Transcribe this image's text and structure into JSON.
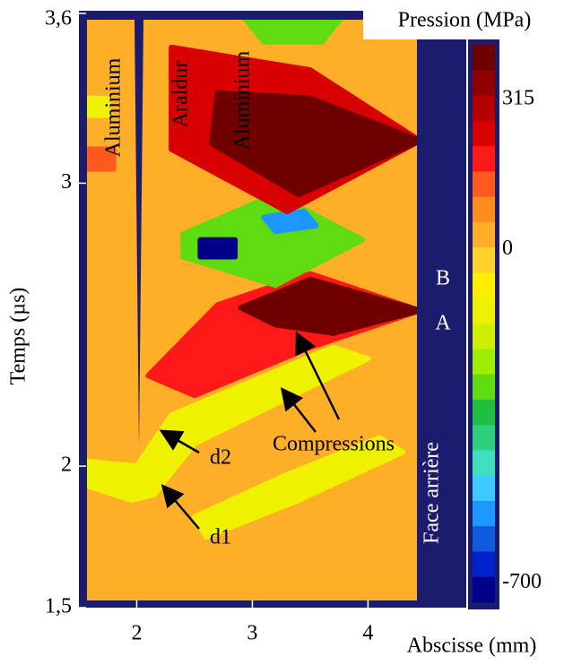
{
  "chart_data": {
    "type": "contour",
    "colorbar_title": "Pression (MPa)",
    "x_label": "Abscisse (mm)",
    "y_label": "Temps (µs)",
    "xlim": [
      1.5,
      4.85
    ],
    "xticks": [
      2,
      3,
      4
    ],
    "ylim": [
      1.5,
      3.6
    ],
    "yticks": [
      {
        "value": 1.5,
        "label": "1,5"
      },
      2,
      3,
      {
        "value": 3.6,
        "label": "3,6"
      }
    ],
    "clim": [
      -740,
      430
    ],
    "cticks": [
      315,
      0,
      -700
    ],
    "colors": [
      "#6e0000",
      "#900000",
      "#b40000",
      "#d80000",
      "#ff1818",
      "#ff5a1e",
      "#ff8c1e",
      "#ffae28",
      "#ffd22a",
      "#ffee00",
      "#eef200",
      "#cdf000",
      "#9fee00",
      "#5fdc10",
      "#20c040",
      "#2ed080",
      "#3ee0c0",
      "#3ccaff",
      "#1e96ff",
      "#105ae0",
      "#0020c8",
      "#000088"
    ],
    "annotations": [
      "Aluminium",
      "Araldur",
      "Aluminium",
      "B",
      "A",
      "Compressions",
      "d1",
      "d2",
      "Face arrière"
    ],
    "zones": [
      {
        "value": 20,
        "x": [
          1.5,
          4.45,
          4.45,
          1.5
        ],
        "y": [
          1.5,
          1.5,
          3.6,
          3.6
        ]
      },
      {
        "value": -150,
        "x": [
          1.5,
          2.0,
          2.3,
          3.0,
          3.7,
          4.0,
          3.2,
          2.5,
          2.15,
          1.95,
          1.5
        ],
        "y": [
          2.02,
          2.0,
          2.18,
          2.3,
          2.42,
          2.38,
          2.22,
          2.08,
          1.9,
          1.88,
          1.94
        ]
      },
      {
        "value": -120,
        "x": [
          2.5,
          3.3,
          4.1,
          4.3,
          3.4,
          2.6
        ],
        "y": [
          1.82,
          1.97,
          2.1,
          2.05,
          1.88,
          1.75
        ]
      },
      {
        "value": 200,
        "x": [
          2.1,
          2.7,
          3.5,
          4.45,
          3.5,
          2.5
        ],
        "y": [
          2.32,
          2.57,
          2.68,
          2.55,
          2.42,
          2.25
        ]
      },
      {
        "value": 380,
        "x": [
          2.9,
          3.5,
          4.45,
          3.7,
          3.2
        ],
        "y": [
          2.56,
          2.66,
          2.55,
          2.47,
          2.5
        ]
      },
      {
        "value": -300,
        "x": [
          2.4,
          3.2,
          3.95,
          3.2,
          2.4
        ],
        "y": [
          2.82,
          2.96,
          2.8,
          2.64,
          2.74
        ]
      },
      {
        "value": -700,
        "x": [
          2.55,
          2.85,
          2.85,
          2.55
        ],
        "y": [
          2.8,
          2.8,
          2.74,
          2.74
        ]
      },
      {
        "value": -550,
        "x": [
          3.1,
          3.45,
          3.55,
          3.2
        ],
        "y": [
          2.88,
          2.9,
          2.85,
          2.83
        ]
      },
      {
        "value": 250,
        "x": [
          2.3,
          3.5,
          4.45,
          3.3,
          2.3
        ],
        "y": [
          3.48,
          3.4,
          3.15,
          2.9,
          3.12
        ]
      },
      {
        "value": 400,
        "x": [
          2.7,
          3.5,
          4.45,
          3.4,
          2.65
        ],
        "y": [
          3.32,
          3.3,
          3.15,
          2.96,
          3.14
        ]
      },
      {
        "value": -300,
        "x": [
          2.9,
          3.8,
          3.6,
          3.1
        ],
        "y": [
          3.6,
          3.6,
          3.5,
          3.5
        ]
      },
      {
        "value": -150,
        "x": [
          1.5,
          1.75,
          1.75,
          1.5
        ],
        "y": [
          3.3,
          3.3,
          3.24,
          3.24
        ]
      },
      {
        "value": 150,
        "x": [
          1.5,
          1.8,
          1.8,
          1.5
        ],
        "y": [
          3.12,
          3.12,
          3.05,
          3.05
        ]
      }
    ]
  }
}
